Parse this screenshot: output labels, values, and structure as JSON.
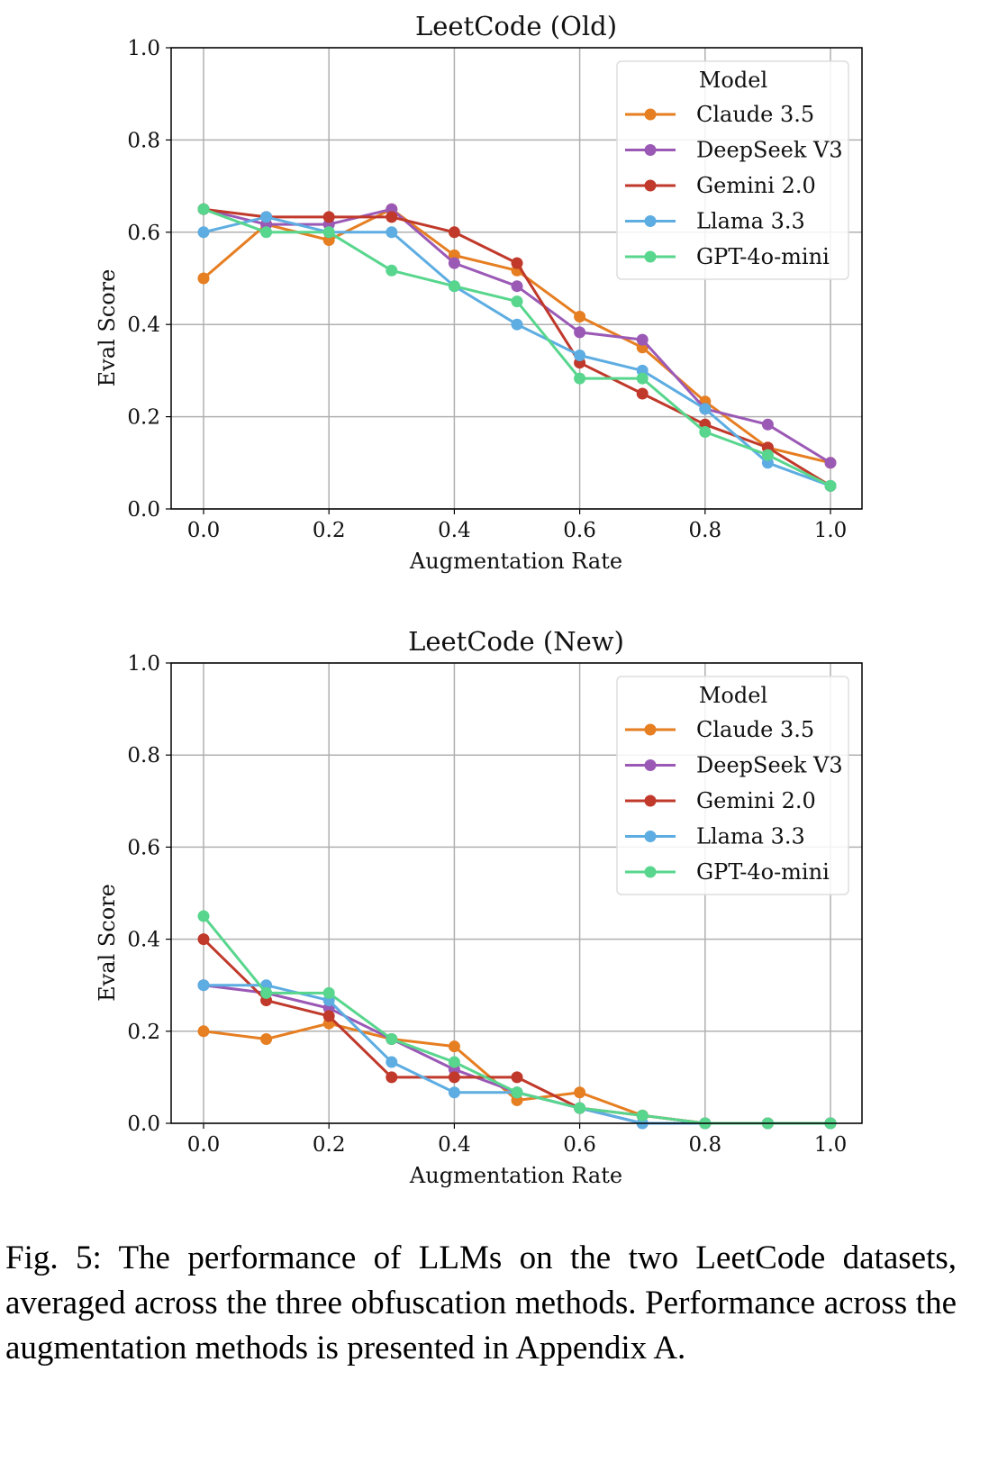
{
  "chart_data": [
    {
      "type": "line",
      "title": "LeetCode (Old)",
      "xlabel": "Augmentation Rate",
      "ylabel": "Eval Score",
      "xlim": [
        0.0,
        1.0
      ],
      "ylim": [
        0.0,
        1.0
      ],
      "xticks": [
        "0.0",
        "0.2",
        "0.4",
        "0.6",
        "0.8",
        "1.0"
      ],
      "yticks": [
        "0.0",
        "0.2",
        "0.4",
        "0.6",
        "0.8",
        "1.0"
      ],
      "grid": true,
      "legend_title": "Model",
      "legend_position": "top-right",
      "x": [
        0.0,
        0.1,
        0.2,
        0.3,
        0.4,
        0.5,
        0.6,
        0.7,
        0.8,
        0.9,
        1.0
      ],
      "series": [
        {
          "name": "Claude 3.5",
          "color": "#e67e22",
          "values": [
            0.5,
            0.617,
            0.583,
            0.65,
            0.55,
            0.517,
            0.417,
            0.35,
            0.233,
            0.133,
            0.1
          ]
        },
        {
          "name": "DeepSeek V3",
          "color": "#9b59b6",
          "values": [
            0.65,
            0.617,
            0.617,
            0.65,
            0.533,
            0.483,
            0.383,
            0.367,
            0.217,
            0.183,
            0.1
          ]
        },
        {
          "name": "Gemini 2.0",
          "color": "#c0392b",
          "values": [
            0.65,
            0.633,
            0.633,
            0.633,
            0.6,
            0.533,
            0.317,
            0.25,
            0.183,
            0.133,
            0.05
          ]
        },
        {
          "name": "Llama 3.3",
          "color": "#5dade2",
          "values": [
            0.6,
            0.633,
            0.6,
            0.6,
            0.483,
            0.4,
            0.333,
            0.3,
            0.217,
            0.1,
            0.05
          ]
        },
        {
          "name": "GPT-4o-mini",
          "color": "#58d68d",
          "values": [
            0.65,
            0.6,
            0.6,
            0.517,
            0.483,
            0.45,
            0.283,
            0.283,
            0.167,
            0.117,
            0.05
          ]
        }
      ]
    },
    {
      "type": "line",
      "title": "LeetCode (New)",
      "xlabel": "Augmentation Rate",
      "ylabel": "Eval Score",
      "xlim": [
        0.0,
        1.0
      ],
      "ylim": [
        0.0,
        1.0
      ],
      "xticks": [
        "0.0",
        "0.2",
        "0.4",
        "0.6",
        "0.8",
        "1.0"
      ],
      "yticks": [
        "0.0",
        "0.2",
        "0.4",
        "0.6",
        "0.8",
        "1.0"
      ],
      "grid": true,
      "legend_title": "Model",
      "legend_position": "top-right",
      "x": [
        0.0,
        0.1,
        0.2,
        0.3,
        0.4,
        0.5,
        0.6,
        0.7,
        0.8,
        0.9,
        1.0
      ],
      "series": [
        {
          "name": "Claude 3.5",
          "color": "#e67e22",
          "values": [
            0.2,
            0.183,
            0.217,
            0.183,
            0.167,
            0.05,
            0.067,
            0.017,
            0.0,
            0.0,
            0.0
          ]
        },
        {
          "name": "DeepSeek V3",
          "color": "#9b59b6",
          "values": [
            0.3,
            0.283,
            0.25,
            0.183,
            0.117,
            0.067,
            0.033,
            0.0,
            0.0,
            0.0,
            0.0
          ]
        },
        {
          "name": "Gemini 2.0",
          "color": "#c0392b",
          "values": [
            0.4,
            0.267,
            0.233,
            0.1,
            0.1,
            0.1,
            0.033,
            0.017,
            0.0,
            0.0,
            0.0
          ]
        },
        {
          "name": "Llama 3.3",
          "color": "#5dade2",
          "values": [
            0.3,
            0.3,
            0.267,
            0.133,
            0.067,
            0.067,
            0.033,
            0.0,
            0.0,
            0.0,
            0.0
          ]
        },
        {
          "name": "GPT-4o-mini",
          "color": "#58d68d",
          "values": [
            0.45,
            0.283,
            0.283,
            0.183,
            0.133,
            0.067,
            0.033,
            0.017,
            0.0,
            0.0,
            0.0
          ]
        }
      ]
    }
  ],
  "caption": "Fig. 5: The performance of LLMs on the two LeetCode datasets, averaged across the three obfuscation methods. Performance across the augmentation methods is presented in Appendix A."
}
